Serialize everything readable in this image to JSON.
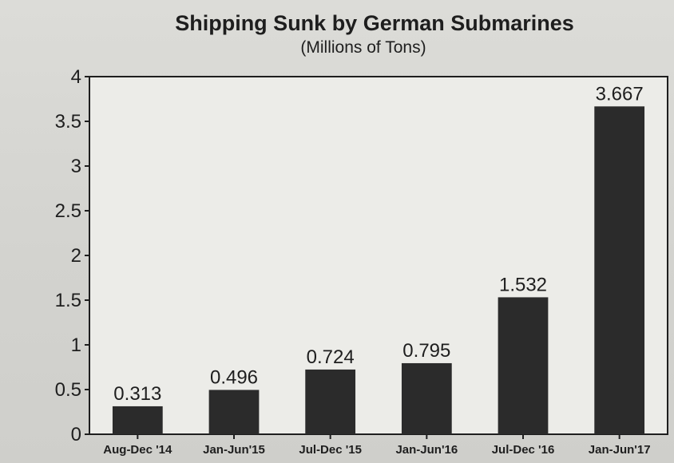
{
  "chart_data": {
    "type": "bar",
    "title": "Shipping Sunk by German Submarines",
    "subtitle": "(Millions of Tons)",
    "xlabel": "",
    "ylabel": "",
    "categories": [
      "Aug-Dec '14",
      "Jan-Jun'15",
      "Jul-Dec '15",
      "Jan-Jun'16",
      "Jul-Dec '16",
      "Jan-Jun'17"
    ],
    "values": [
      0.313,
      0.496,
      0.724,
      0.795,
      1.532,
      3.667
    ],
    "value_labels": [
      "0.313",
      "0.496",
      "0.724",
      "0.795",
      "1.532",
      "3.667"
    ],
    "ylim": [
      0,
      4
    ],
    "yticks": [
      0,
      0.5,
      1,
      1.5,
      2,
      2.5,
      3,
      3.5,
      4
    ],
    "ytick_labels": [
      "0",
      "0.5",
      "1",
      "1.5",
      "2",
      "2.5",
      "3",
      "3.5",
      "4"
    ],
    "grid": false,
    "legend": "none",
    "bar_color": "#2b2b2b"
  }
}
